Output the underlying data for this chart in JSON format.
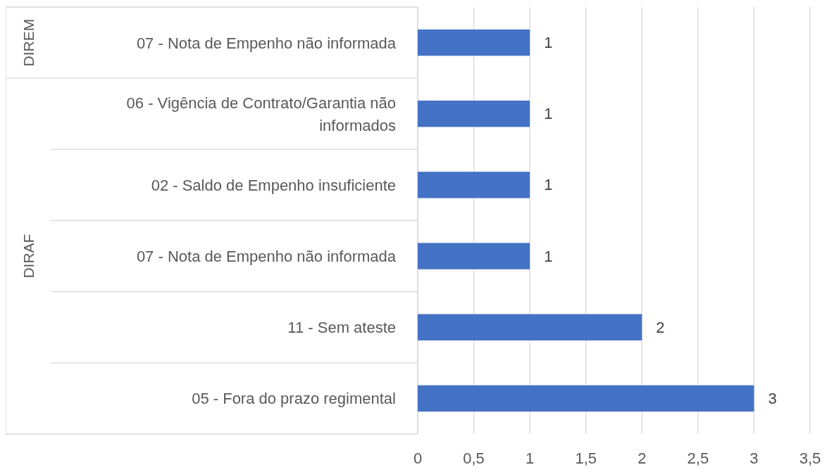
{
  "chart_data": {
    "type": "bar",
    "orientation": "horizontal",
    "categories": [
      "07 - Nota de Empenho não informada",
      "06 - Vigência de Contrato/Garantia não informados",
      "02 - Saldo de Empenho insuficiente",
      "07 - Nota de Empenho não informada",
      "11 - Sem ateste",
      "05 - Fora do prazo regimental"
    ],
    "values": [
      1,
      1,
      1,
      1,
      2,
      3
    ],
    "color": "#4472c4",
    "xlim": [
      0,
      3.5
    ],
    "xticks": [
      0,
      {
        "value": 0.5,
        "label": "0,5"
      },
      1,
      {
        "value": 1.5,
        "label": "1,5"
      },
      2,
      {
        "value": 2.5,
        "label": "2,5"
      },
      3,
      {
        "value": 3.5,
        "label": "3,5"
      }
    ],
    "grid": "x",
    "data_labels": true,
    "annotations": [
      "DIREM",
      "DIRAF"
    ]
  }
}
